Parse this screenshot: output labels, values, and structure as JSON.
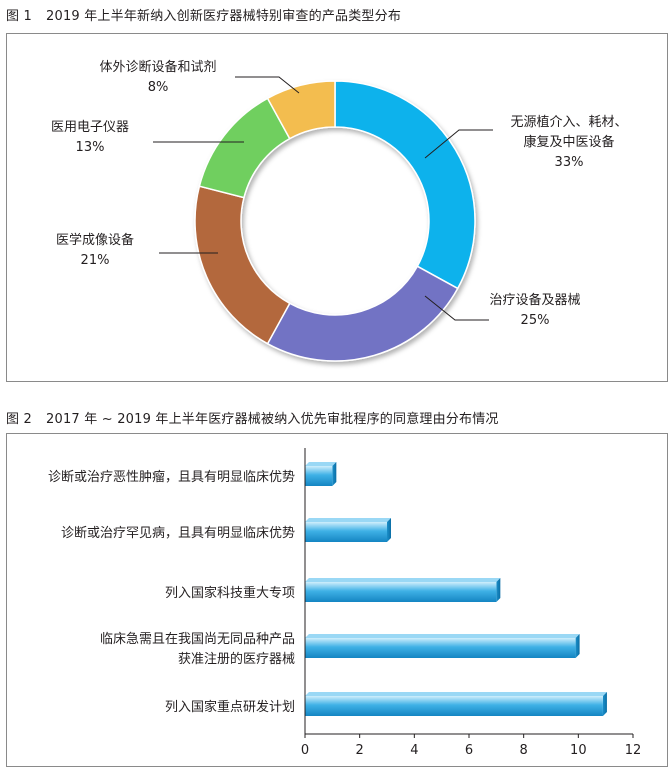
{
  "figure1": {
    "number": "图 1",
    "title": "2019 年上半年新纳入创新医疗器械特别审查的产品类型分布",
    "chart_data": {
      "type": "pie",
      "donut": true,
      "slices": [
        {
          "label_lines": [
            "无源植介入、耗材、",
            "康复及中医设备"
          ],
          "value": 33,
          "percent_label": "33%",
          "color": "#10b2ec"
        },
        {
          "label_lines": [
            "治疗设备及器械"
          ],
          "value": 25,
          "percent_label": "25%",
          "color": "#7273c4"
        },
        {
          "label_lines": [
            "医学成像设备"
          ],
          "value": 21,
          "percent_label": "21%",
          "color": "#b3673c"
        },
        {
          "label_lines": [
            "医用电子仪器"
          ],
          "value": 13,
          "percent_label": "13%",
          "color": "#6fcf5f"
        },
        {
          "label_lines": [
            "体外诊断设备和试剂"
          ],
          "value": 8,
          "percent_label": "8%",
          "color": "#f3bd4f"
        }
      ]
    }
  },
  "figure2": {
    "number": "图 2",
    "title": "2017 年 ~ 2019 年上半年医疗器械被纳入优先审批程序的同意理由分布情况",
    "chart_data": {
      "type": "bar",
      "orientation": "horizontal",
      "categories": [
        [
          "诊断或治疗恶性肿瘤，且具有明显临床优势"
        ],
        [
          "诊断或治疗罕见病，且具有明显临床优势"
        ],
        [
          "列入国家科技重大专项"
        ],
        [
          "临床急需且在我国尚无同品种产品",
          "获准注册的医疗器械"
        ],
        [
          "列入国家重点研发计划"
        ]
      ],
      "values": [
        1,
        3,
        7,
        9.9,
        10.9
      ],
      "xlim": [
        0,
        12
      ],
      "xticks": [
        0,
        2,
        4,
        6,
        8,
        10,
        12
      ],
      "bar_color": "#2a9fd8",
      "grid": false
    }
  }
}
